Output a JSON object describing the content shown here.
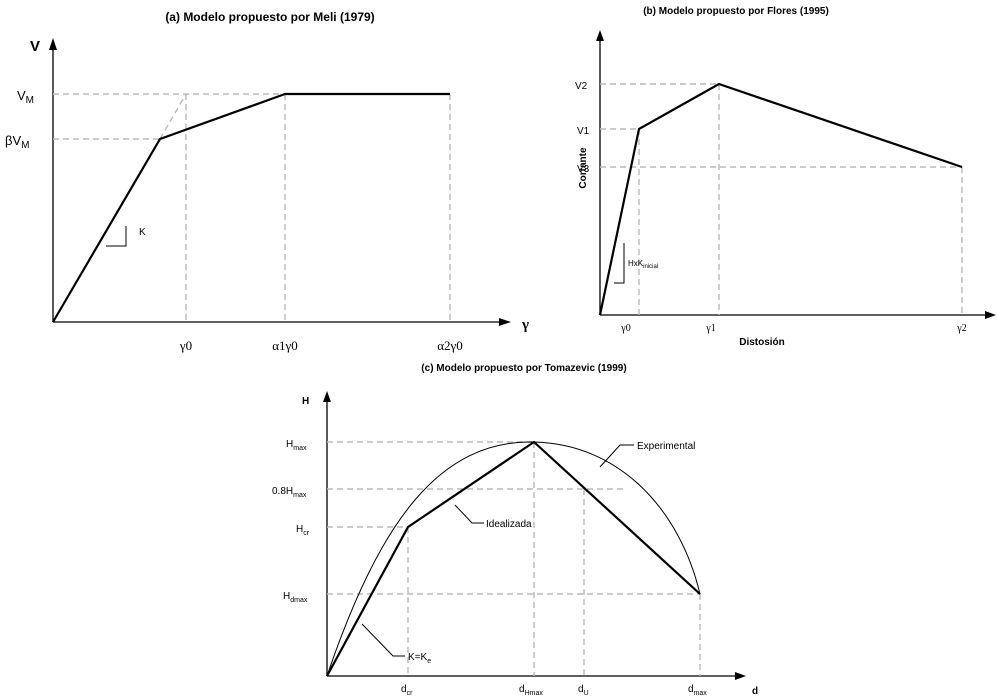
{
  "panel_a": {
    "title": "(a) Modelo propuesto por Meli (1979)",
    "y_axis": "V",
    "x_axis": "γ",
    "vm": "V",
    "vm_sub": "M",
    "bvm": "βV",
    "bvm_sub": "M",
    "k": "K",
    "g0": "γ0",
    "a1g0": "α1γ0",
    "a2g0": "α2γ0"
  },
  "panel_b": {
    "title": "(b) Modelo propuesto por Flores (1995)",
    "y_axis": "Cortante",
    "x_axis": "Distosión",
    "v2": "V2",
    "v1": "V1",
    "v3": "V3",
    "k": "HxK",
    "k_sub": "inicial",
    "g0": "γ0",
    "g1": "γ1",
    "g2": "γ2"
  },
  "panel_c": {
    "title": "(c) Modelo propuesto por Tomazevic (1999)",
    "y_axis": "H",
    "x_axis": "d",
    "hmax": "H",
    "hmax_sub": "max",
    "h08": "0.8H",
    "h08_sub": "max",
    "hcr": "H",
    "hcr_sub": "cr",
    "hdmax": "H",
    "hdmax_sub": "dmax",
    "experimental": "Experimental",
    "idealizada": "Idealizada",
    "ke": "K=K",
    "ke_sub": "e",
    "dcr": "d",
    "dcr_sub": "cr",
    "dhmax": "d",
    "dhmax_sub": "Hmax",
    "du": "d",
    "du_sub": "U",
    "dmax": "d",
    "dmax_sub": "max"
  }
}
